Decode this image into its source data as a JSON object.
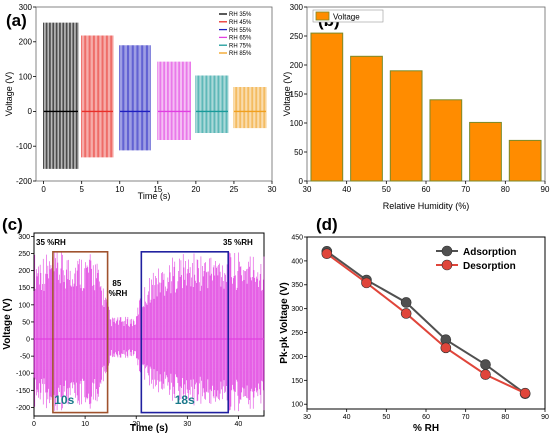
{
  "panels": {
    "a": {
      "label": "(a)"
    },
    "b": {
      "label": "(b)"
    },
    "c": {
      "label": "(c)"
    },
    "d": {
      "label": "(d)"
    }
  },
  "chart_data": [
    {
      "panel": "a",
      "type": "line",
      "xlabel": "Time (s)",
      "ylabel": "Voltage (V)",
      "xlim": [
        -1,
        30
      ],
      "ylim": [
        -200,
        300
      ],
      "xticks": [
        0,
        5,
        10,
        15,
        20,
        25,
        30
      ],
      "yticks": [
        -200,
        -100,
        0,
        100,
        200,
        300
      ],
      "legend_position": "top-right",
      "series": [
        {
          "name": "RH 35%",
          "color": "#000000",
          "x_start": 0,
          "x_end": 4.5,
          "peak_pos": 255,
          "peak_neg": -165
        },
        {
          "name": "RH 45%",
          "color": "#e8302a",
          "x_start": 5.0,
          "x_end": 9.1,
          "peak_pos": 218,
          "peak_neg": -132
        },
        {
          "name": "RH 55%",
          "color": "#2020c0",
          "x_start": 10.0,
          "x_end": 14.0,
          "peak_pos": 190,
          "peak_neg": -112
        },
        {
          "name": "RH 65%",
          "color": "#e040e0",
          "x_start": 15.0,
          "x_end": 19.3,
          "peak_pos": 143,
          "peak_neg": -82
        },
        {
          "name": "RH 75%",
          "color": "#1a9a9a",
          "x_start": 20.0,
          "x_end": 24.2,
          "peak_pos": 103,
          "peak_neg": -62
        },
        {
          "name": "RH 85%",
          "color": "#f0a020",
          "x_start": 25.0,
          "x_end": 29.2,
          "peak_pos": 70,
          "peak_neg": -48
        }
      ]
    },
    {
      "panel": "b",
      "type": "bar",
      "xlabel": "Relative Humidity (%)",
      "ylabel": "Voltage (V)",
      "xlim": [
        30,
        90
      ],
      "ylim": [
        0,
        300
      ],
      "xticks": [
        30,
        40,
        50,
        60,
        70,
        80,
        90
      ],
      "yticks": [
        0,
        50,
        100,
        150,
        200,
        250,
        300
      ],
      "legend_position": "top-left",
      "bar_color": "#ff8c00",
      "series": [
        {
          "name": "Voltage",
          "x": [
            35,
            45,
            55,
            65,
            75,
            85
          ],
          "values": [
            255,
            215,
            190,
            140,
            101,
            70
          ]
        }
      ]
    },
    {
      "panel": "c",
      "type": "line",
      "xlabel": "Time (s)",
      "ylabel": "Voltage (V)",
      "xlim": [
        0,
        45
      ],
      "ylim": [
        -225,
        310
      ],
      "xticks": [
        0,
        10,
        20,
        30,
        40
      ],
      "yticks": [
        -200,
        -150,
        -100,
        -50,
        0,
        50,
        100,
        150,
        200,
        250,
        300
      ],
      "line_color": "#e040e0",
      "envelope": {
        "t": [
          0,
          3,
          8,
          12,
          13,
          14.5,
          15,
          20,
          20.5,
          23,
          28,
          33,
          38,
          42,
          45
        ],
        "pos": [
          255,
          255,
          255,
          250,
          190,
          110,
          65,
          65,
          120,
          200,
          250,
          255,
          255,
          255,
          255
        ],
        "neg": [
          -205,
          -210,
          -210,
          -205,
          -160,
          -90,
          -55,
          -55,
          -100,
          -150,
          -190,
          -200,
          -210,
          -215,
          -220
        ]
      },
      "boxes": [
        {
          "t0": 3.7,
          "t1": 14.4,
          "color": "#a0522d",
          "label": "10s"
        },
        {
          "t0": 21.0,
          "t1": 38.0,
          "color": "#2020a0",
          "label": "18s"
        }
      ],
      "annotations": [
        "35 %RH",
        "85 %RH",
        "35 %RH"
      ]
    },
    {
      "panel": "d",
      "type": "line",
      "xlabel": "% RH",
      "ylabel": "Pk-pk Voltage (V)",
      "xlim": [
        30,
        90
      ],
      "ylim": [
        90,
        450
      ],
      "xticks": [
        30,
        40,
        50,
        60,
        70,
        80,
        90
      ],
      "yticks": [
        100,
        150,
        200,
        250,
        300,
        350,
        400,
        450
      ],
      "legend_position": "top-right",
      "series": [
        {
          "name": "Adsorption",
          "color": "#505050",
          "x": [
            35,
            45,
            55,
            65,
            75,
            85
          ],
          "values": [
            420,
            360,
            313,
            235,
            183,
            122
          ]
        },
        {
          "name": "Desorption",
          "color": "#e0453a",
          "x": [
            35,
            45,
            55,
            65,
            75,
            85
          ],
          "values": [
            415,
            354,
            290,
            218,
            162,
            123
          ]
        }
      ]
    }
  ]
}
